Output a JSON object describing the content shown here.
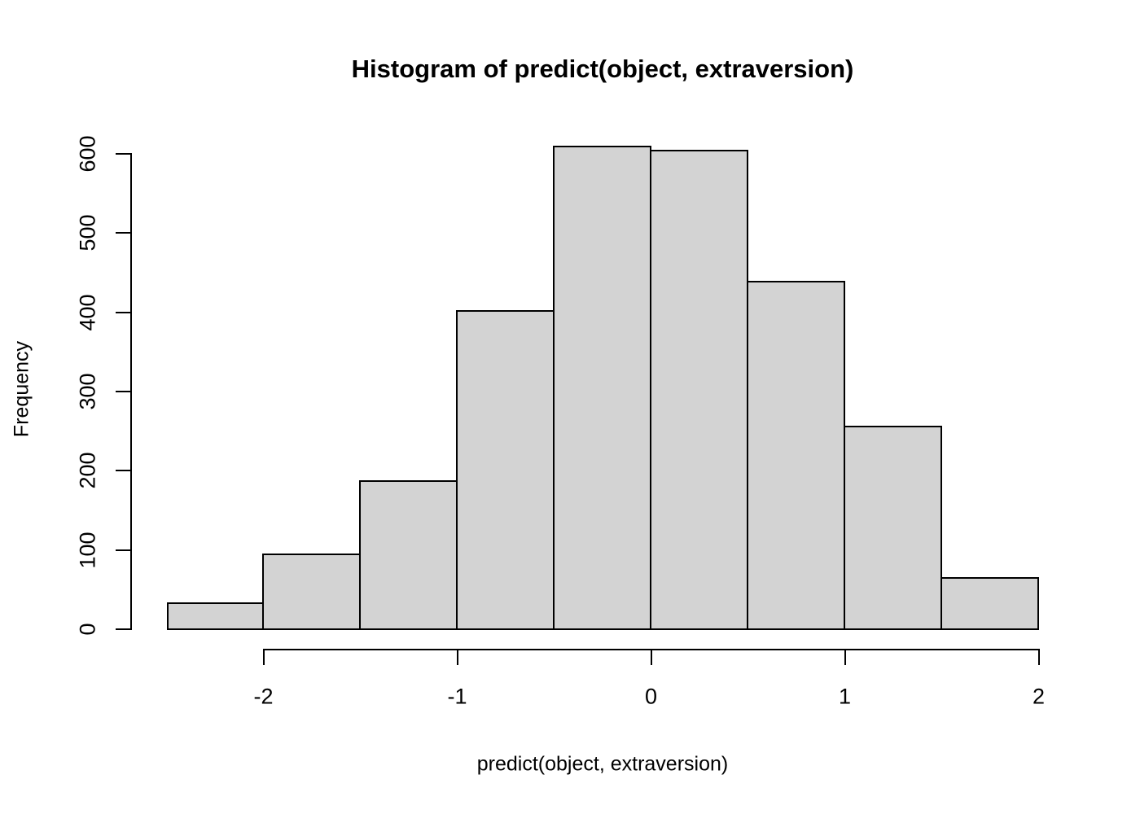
{
  "figure": {
    "title": "Histogram of predict(object, extraversion)",
    "xlabel": "predict(object, extraversion)",
    "ylabel": "Frequency"
  },
  "chart_data": {
    "type": "bar",
    "chart_kind": "histogram",
    "title": "Histogram of predict(object, extraversion)",
    "xlabel": "predict(object, extraversion)",
    "ylabel": "Frequency",
    "bin_edges": [
      -2.5,
      -2.0,
      -1.5,
      -1.0,
      -0.5,
      0.0,
      0.5,
      1.0,
      1.5,
      2.0
    ],
    "values": [
      34,
      95,
      188,
      403,
      610,
      605,
      440,
      257,
      66
    ],
    "x_tick_labels": [
      "-2",
      "-1",
      "0",
      "1",
      "2"
    ],
    "x_tick_values": [
      -2,
      -1,
      0,
      1,
      2
    ],
    "y_tick_labels": [
      "0",
      "100",
      "200",
      "300",
      "400",
      "500",
      "600"
    ],
    "y_tick_values": [
      0,
      100,
      200,
      300,
      400,
      500,
      600
    ],
    "xlim": [
      -2.5,
      2.0
    ],
    "ylim": [
      0,
      600
    ],
    "grid": false,
    "legend_position": "none",
    "bar_fill_color": "#d3d3d3",
    "bar_border_color": "#000000",
    "axis_color": "#000000",
    "background_color": "#ffffff"
  }
}
